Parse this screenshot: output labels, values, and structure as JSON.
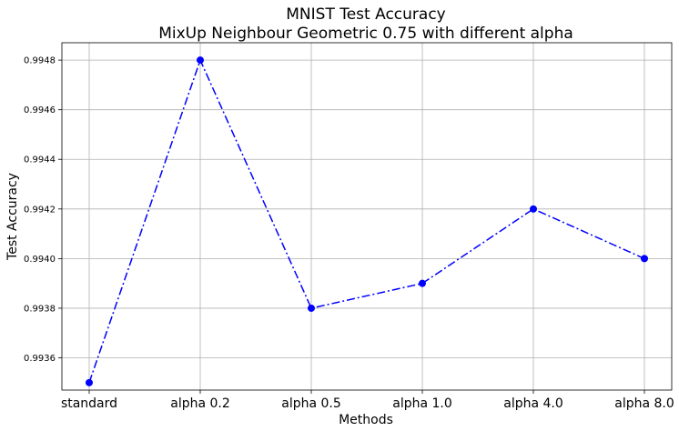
{
  "chart_data": {
    "type": "line",
    "title": [
      "MNIST Test Accuracy",
      "MixUp Neighbour Geometric 0.75 with different alpha"
    ],
    "xlabel": "Methods",
    "ylabel": "Test Accuracy",
    "categories": [
      "standard",
      "alpha 0.2",
      "alpha 0.5",
      "alpha 1.0",
      "alpha 4.0",
      "alpha 8.0"
    ],
    "series": [
      {
        "values": [
          0.9935,
          0.9948,
          0.9938,
          0.9939,
          0.9942,
          0.994
        ],
        "color": "#0000ff",
        "linestyle": "dashdot",
        "marker": "circle"
      }
    ],
    "ylim": [
      0.99347,
      0.99487
    ],
    "yticks": [
      0.9936,
      0.9938,
      0.994,
      0.9942,
      0.9944,
      0.9946,
      0.9948
    ],
    "ytick_labels": [
      "0.9936",
      "0.9938",
      "0.9940",
      "0.9942",
      "0.9944",
      "0.9946",
      "0.9948"
    ],
    "grid": true,
    "legend": null
  }
}
